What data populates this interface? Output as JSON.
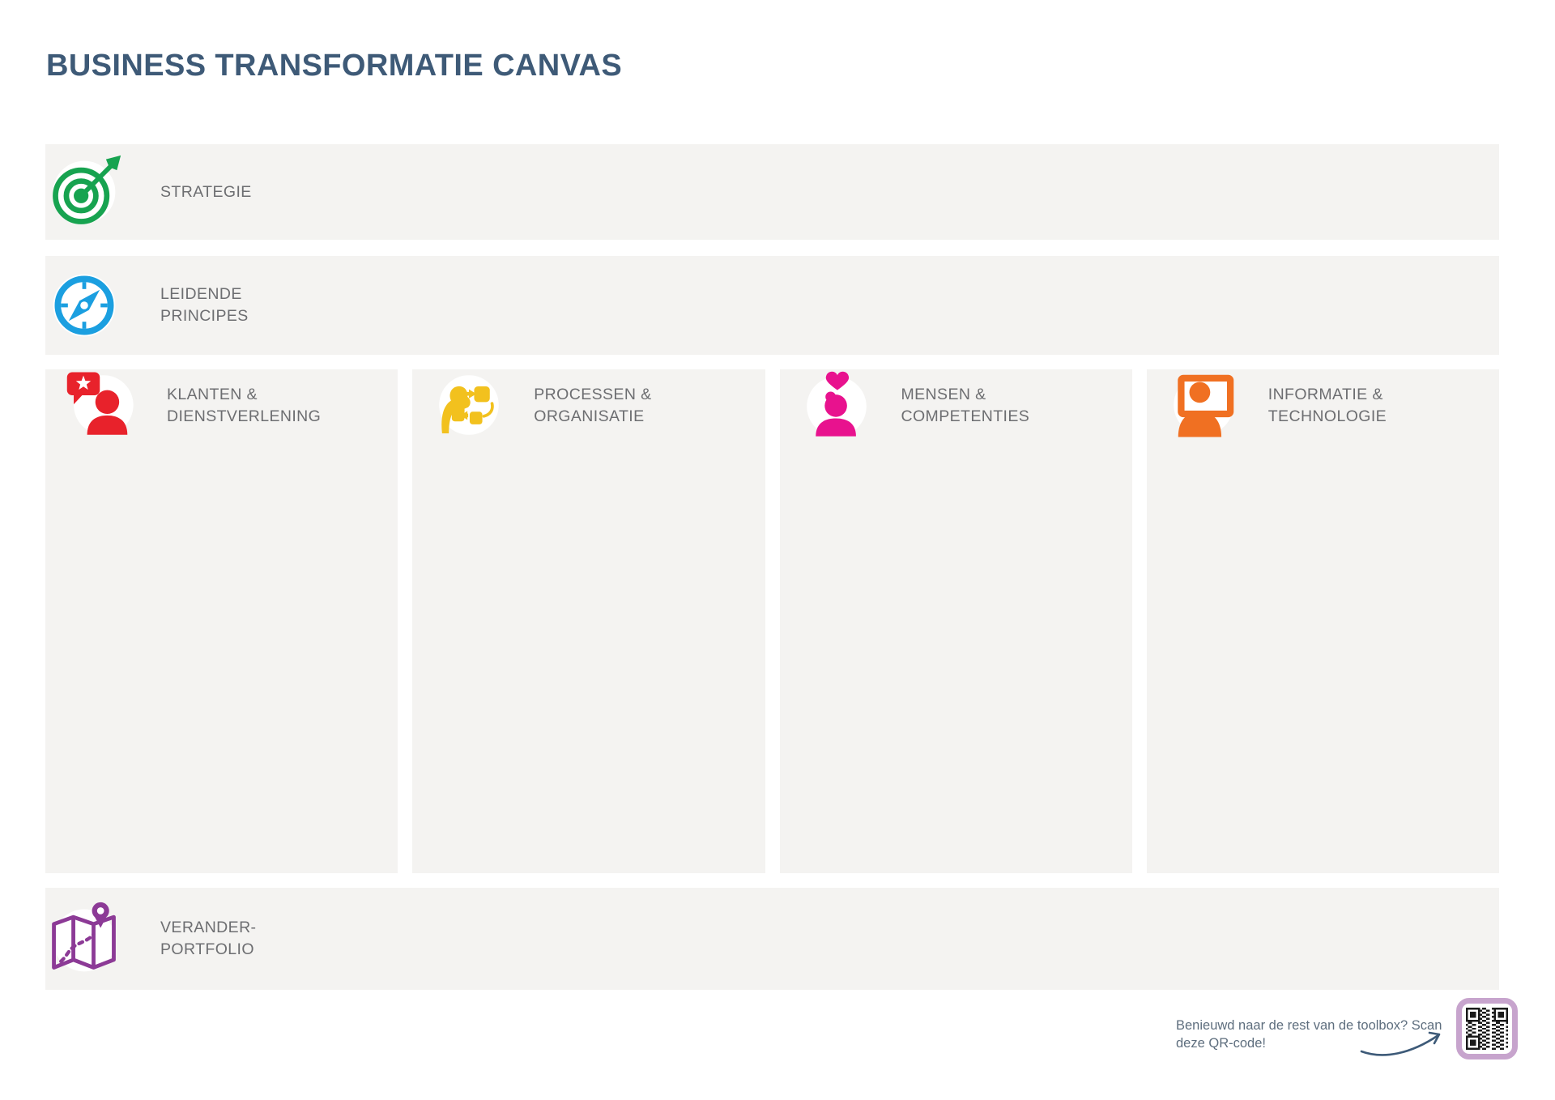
{
  "page": {
    "title": "BUSINESS TRANSFORMATIE CANVAS"
  },
  "colors": {
    "title": "#3E5A77",
    "label": "#6D6E71",
    "panel": "#F4F3F1",
    "strategie": "#17A350",
    "principes": "#1B9FE0",
    "klanten": "#E8222B",
    "processen": "#F2C11E",
    "mensen": "#E8128E",
    "informatie": "#F07022",
    "verander": "#8C3A96",
    "qr_border": "#C7A4CD",
    "footer": "#5E6E7E",
    "arrow": "#3D5A78"
  },
  "rows": {
    "strategie": {
      "label": "STRATEGIE",
      "icon": "target-arrow-icon"
    },
    "leidende_principes": {
      "line1": "LEIDENDE",
      "line2": "PRINCIPES",
      "icon": "compass-icon"
    },
    "verander_portfolio": {
      "line1": "VERANDER-",
      "line2": "PORTFOLIO",
      "icon": "map-route-pin-icon"
    }
  },
  "columns": [
    {
      "id": "klanten",
      "line1": "KLANTEN &",
      "line2": "DIENSTVERLENING",
      "icon": "customer-review-icon"
    },
    {
      "id": "processen",
      "line1": "PROCESSEN &",
      "line2": "ORGANISATIE",
      "icon": "process-flow-icon"
    },
    {
      "id": "mensen",
      "line1": "MENSEN &",
      "line2": "COMPETENTIES",
      "icon": "person-heart-icon"
    },
    {
      "id": "informatie",
      "line1": "INFORMATIE &",
      "line2": "TECHNOLOGIE",
      "icon": "person-monitor-icon"
    }
  ],
  "footer": {
    "line1": "Benieuwd naar de rest van de toolbox? Scan",
    "line2": "deze QR-code!",
    "icons": [
      "curved-arrow-icon",
      "qr-code"
    ]
  }
}
